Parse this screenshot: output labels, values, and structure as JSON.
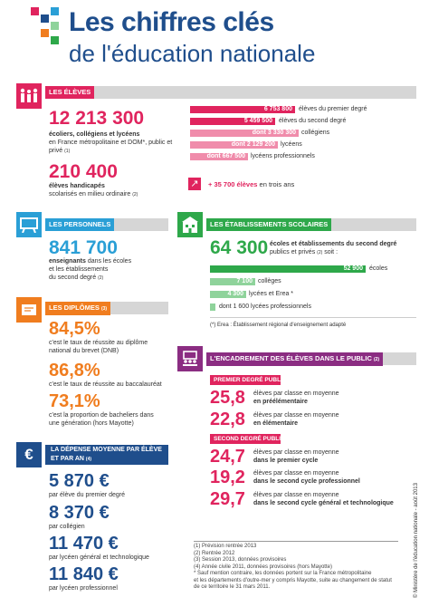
{
  "header": {
    "title": "Les chiffres clés",
    "subtitle": "de l'éducation nationale"
  },
  "eleves": {
    "heading": "LES ÉLÈVES",
    "total": "12 213 300",
    "total_desc_bold": "écoliers, collégiens et lycéens",
    "total_desc": "en France métropolitaine et DOM*, public et privé",
    "total_ref": "(1)",
    "handicap": "210 400",
    "handicap_desc_bold": "élèves handicapés",
    "handicap_desc": "scolarisés en milieu ordinaire",
    "handicap_ref": "(2)",
    "bars": [
      {
        "value": "6 753 800",
        "label": "élèves du premier degré",
        "color": "#e0245e"
      },
      {
        "value": "5 459 500",
        "label": "élèves du second degré",
        "color": "#e0245e"
      },
      {
        "value": "dont 3 330 300",
        "label": "collégiens",
        "color": "#f08cab"
      },
      {
        "value": "dont 2 129 200",
        "label": "lycéens",
        "color": "#f08cab"
      },
      {
        "value": "dont 667 500",
        "label": "lycéens professionnels",
        "color": "#f08cab"
      }
    ],
    "growth_value": "35 700 élèves",
    "growth_label": "en trois ans"
  },
  "personnels": {
    "heading": "LES PERSONNELS",
    "total": "841 700",
    "desc_bold": "enseignants",
    "desc1": "dans les écoles",
    "desc2": "et les établissements",
    "desc3": "du second degré",
    "ref": "(2)"
  },
  "etablissements": {
    "heading": "LES ÉTABLISSEMENTS SCOLAIRES",
    "total": "64 300",
    "desc_bold": "écoles et établissements du second degré",
    "desc": "publics et privés",
    "ref": "(2)",
    "desc_end": "soit :",
    "bars": [
      {
        "value": "52 900",
        "label": "écoles",
        "color": "#2ea84a"
      },
      {
        "value": "7 100",
        "label": "collèges",
        "color": "#8fd39b"
      },
      {
        "value": "4 300",
        "label": "lycées et Erea *",
        "color": "#8fd39b"
      },
      {
        "value": "dont 1 600",
        "label": "lycées professionnels",
        "color": "#8fd39b"
      }
    ],
    "note": "(*) Erea : Établissement régional d'enseignement adapté"
  },
  "diplomes": {
    "heading": "LES DIPLÔMES",
    "ref": "(3)",
    "items": [
      {
        "value": "84,5%",
        "desc1": "c'est le taux de réussite au diplôme",
        "desc2": "national du brevet (DNB)"
      },
      {
        "value": "86,8%",
        "desc1": "c'est le taux de réussite au baccalauréat",
        "desc2": ""
      },
      {
        "value": "73,1%",
        "desc1": "c'est la proportion de bacheliers dans",
        "desc2": "une génération (hors Mayotte)"
      }
    ]
  },
  "encadrement": {
    "heading": "L'ENCADREMENT DES ÉLÈVES DANS LE PUBLIC",
    "ref": "(2)",
    "premier": "PREMIER DEGRÉ PUBLIC",
    "second": "SECOND DEGRÉ PUBLIC",
    "items": [
      {
        "value": "25,8",
        "l1": "élèves par classe en moyenne",
        "l2": "en préélémentaire"
      },
      {
        "value": "22,8",
        "l1": "élèves par classe en moyenne",
        "l2": "en élémentaire"
      },
      {
        "value": "24,7",
        "l1": "élèves par classe en moyenne",
        "l2": "dans le premier cycle"
      },
      {
        "value": "19,2",
        "l1": "élèves par classe en moyenne",
        "l2": "dans le second cycle professionnel"
      },
      {
        "value": "29,7",
        "l1": "élèves par classe en moyenne",
        "l2": "dans le second cycle général et technologique"
      }
    ]
  },
  "depense": {
    "heading1": "LA DÉPENSE MOYENNE PAR ÉLÈVE",
    "heading2": "ET PAR AN",
    "ref": "(4)",
    "items": [
      {
        "value": "5 870 €",
        "label": "par élève du premier degré"
      },
      {
        "value": "8 370 €",
        "label": "par collégien"
      },
      {
        "value": "11 470 €",
        "label": "par lycéen général et technologique"
      },
      {
        "value": "11 840 €",
        "label": "par lycéen professionnel"
      }
    ]
  },
  "footnotes": [
    "(1) Prévision rentrée 2013",
    "(2) Rentrée 2012",
    "(3) Session 2013, données provisoires",
    "(4) Année civile 2011, données provisoires (hors Mayotte)",
    "* Sauf mention contraire, les données portent sur la France métropolitaine",
    "et les départements d'outre-mer y compris Mayotte, suite au changement de statut",
    "de ce territoire le 31 mars 2011."
  ],
  "credit": "© Ministère de l'éducation nationale - août 2013",
  "colors": {
    "pink": "#e0245e",
    "blue": "#2a9fd6",
    "green": "#2ea84a",
    "orange": "#f07d1f",
    "purple": "#8b2d82",
    "navy": "#1f4e8c"
  }
}
